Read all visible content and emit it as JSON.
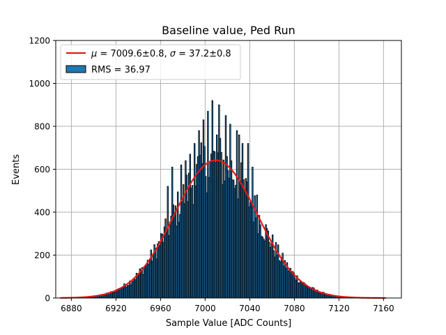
{
  "chart_data": {
    "type": "bar",
    "title": "Baseline value, Ped Run",
    "xlabel": "Sample Value [ADC Counts]",
    "ylabel": "Events",
    "xlim": [
      6866,
      7176
    ],
    "ylim": [
      0,
      1200
    ],
    "xticks": [
      6880,
      6920,
      6960,
      7000,
      7040,
      7080,
      7120,
      7160
    ],
    "yticks": [
      0,
      200,
      400,
      600,
      800,
      1000,
      1200
    ],
    "grid": true,
    "legend_position": "top-left",
    "legend": {
      "fit_label": "$\\mu = 7009.6 \\pm 0.8$, $\\sigma = 37.2 \\pm 0.8$",
      "fit_label_mu_symbol": "μ",
      "fit_label_mu_text": " = 7009.6±0.8, ",
      "fit_label_sigma_symbol": "σ",
      "fit_label_sigma_text": " = 37.2±0.8",
      "hist_label": "RMS = 36.97"
    },
    "colors": {
      "bar_fill": "#1f77b4",
      "bar_edge": "#000000",
      "fit": "#e31a1c",
      "grid": "#b0b0b0"
    },
    "histogram": {
      "bin_width": 1,
      "bin_start": 6870,
      "peak_spikes": [
        {
          "x": 7006,
          "y": 920
        },
        {
          "x": 7012,
          "y": 900
        },
        {
          "x": 7002,
          "y": 870
        },
        {
          "x": 6998,
          "y": 830
        },
        {
          "x": 7018,
          "y": 850
        },
        {
          "x": 7022,
          "y": 810
        },
        {
          "x": 7010,
          "y": 760
        },
        {
          "x": 6994,
          "y": 780
        },
        {
          "x": 7028,
          "y": 780
        },
        {
          "x": 7033,
          "y": 720
        },
        {
          "x": 7038,
          "y": 720
        },
        {
          "x": 7030,
          "y": 760
        },
        {
          "x": 6990,
          "y": 720
        },
        {
          "x": 6986,
          "y": 670
        },
        {
          "x": 6982,
          "y": 640
        },
        {
          "x": 6978,
          "y": 620
        },
        {
          "x": 6970,
          "y": 610
        },
        {
          "x": 6966,
          "y": 520
        },
        {
          "x": 7042,
          "y": 610
        },
        {
          "x": 7046,
          "y": 480
        }
      ]
    },
    "fit": {
      "mu": 7009.6,
      "sigma": 37.2,
      "amplitude": 642,
      "x_range": [
        6870,
        7162
      ]
    }
  }
}
